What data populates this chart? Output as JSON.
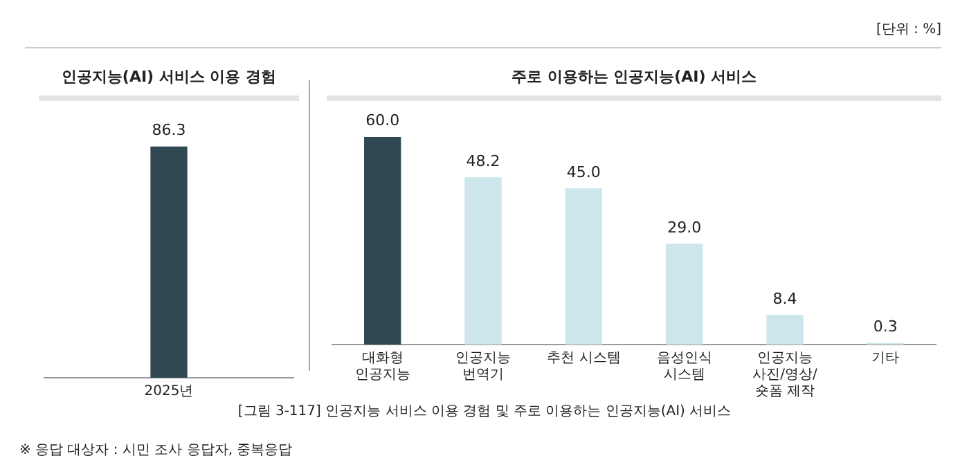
{
  "chart_data": [
    {
      "type": "bar",
      "title": "인공지능(AI) 서비스 이용 경험",
      "categories": [
        "2025년"
      ],
      "values": [
        86.3
      ],
      "colors": [
        "#2f4852"
      ],
      "data_labels": true,
      "grid": false,
      "legend": false,
      "tick_labels": "x",
      "annotations": [
        "[단위 : %]"
      ]
    },
    {
      "type": "bar",
      "title": "주로 이용하는 인공지능(AI) 서비스",
      "categories": [
        "대화형\n인공지능",
        "인공지능\n번역기",
        "추천 시스템",
        "음성인식\n시스템",
        "인공지능\n사진/영상/\n숏폼 제작",
        "기타"
      ],
      "values": [
        60.0,
        48.2,
        45.0,
        29.0,
        8.4,
        0.3
      ],
      "value_labels": [
        "60.0",
        "48.2",
        "45.0",
        "29.0",
        "8.4",
        "0.3"
      ],
      "colors": [
        "#2f4852",
        "#cde6ec",
        "#cde6ec",
        "#cde6ec",
        "#cde6ec",
        "#cde6ec"
      ],
      "grid": false,
      "legend": false,
      "tick_labels": "x",
      "annotations": [
        "[그림 3-117] 인공지능 서비스 이용 경험 및 주로 이용하는 인공지능(AI) 서비스",
        "※ 응답 대상자 : 시민 조사 응답자, 중복응답"
      ]
    }
  ]
}
